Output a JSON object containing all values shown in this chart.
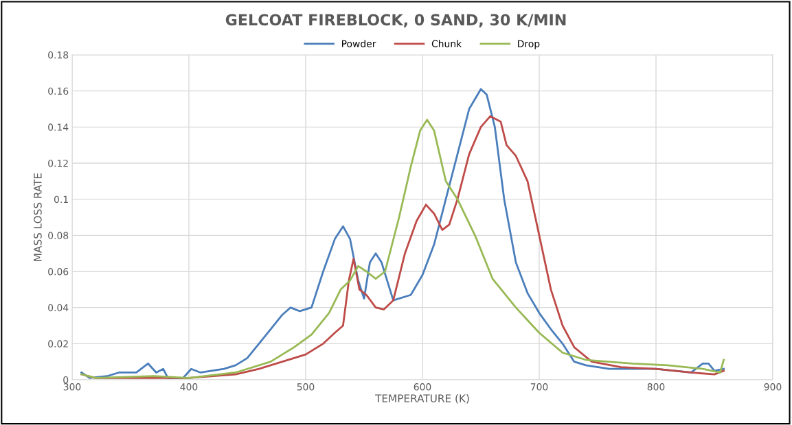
{
  "chart_data": {
    "type": "line",
    "title": "GELCOAT FIREBLOCK, 0 SAND, 30 K/MIN",
    "xlabel": "TEMPERATURE (K)",
    "ylabel": "MASS LOSS RATE",
    "xlim": [
      300,
      900
    ],
    "xticks": [
      300,
      400,
      500,
      600,
      700,
      800,
      900
    ],
    "ylim": [
      0,
      0.18
    ],
    "yticks": [
      0,
      0.02,
      0.04,
      0.06,
      0.08,
      0.1,
      0.12,
      0.14,
      0.16,
      0.18
    ],
    "grid": true,
    "legend": "top",
    "marker": "none",
    "line_style": "solid",
    "series": [
      {
        "name": "Powder",
        "color": "#4a7ebb",
        "x": [
          308,
          315,
          330,
          340,
          355,
          365,
          372,
          378,
          382,
          395,
          402,
          410,
          430,
          440,
          450,
          460,
          470,
          480,
          487,
          495,
          505,
          515,
          525,
          532,
          538,
          545,
          550,
          555,
          560,
          565,
          575,
          590,
          600,
          610,
          620,
          630,
          640,
          650,
          655,
          662,
          670,
          680,
          690,
          700,
          710,
          720,
          730,
          740,
          760,
          800,
          830,
          840,
          845,
          850,
          858
        ],
        "values": [
          0.004,
          0.001,
          0.002,
          0.004,
          0.004,
          0.009,
          0.004,
          0.006,
          0.001,
          0.001,
          0.006,
          0.004,
          0.006,
          0.008,
          0.012,
          0.02,
          0.028,
          0.036,
          0.04,
          0.038,
          0.04,
          0.06,
          0.078,
          0.085,
          0.078,
          0.055,
          0.045,
          0.065,
          0.07,
          0.065,
          0.044,
          0.047,
          0.058,
          0.075,
          0.1,
          0.125,
          0.15,
          0.161,
          0.158,
          0.14,
          0.1,
          0.065,
          0.048,
          0.037,
          0.028,
          0.02,
          0.01,
          0.008,
          0.006,
          0.006,
          0.004,
          0.009,
          0.009,
          0.005,
          0.006
        ]
      },
      {
        "name": "Chunk",
        "color": "#be4b48",
        "x": [
          308,
          320,
          360,
          400,
          440,
          460,
          480,
          500,
          515,
          525,
          532,
          537,
          541,
          546,
          552,
          560,
          567,
          575,
          585,
          595,
          603,
          610,
          617,
          623,
          630,
          640,
          650,
          658,
          667,
          672,
          680,
          690,
          700,
          710,
          720,
          730,
          745,
          770,
          800,
          830,
          850,
          858
        ],
        "values": [
          0.003,
          0.001,
          0.001,
          0.001,
          0.003,
          0.006,
          0.01,
          0.014,
          0.02,
          0.026,
          0.03,
          0.055,
          0.067,
          0.05,
          0.047,
          0.04,
          0.039,
          0.044,
          0.07,
          0.088,
          0.097,
          0.092,
          0.083,
          0.086,
          0.1,
          0.125,
          0.14,
          0.146,
          0.143,
          0.13,
          0.124,
          0.11,
          0.08,
          0.05,
          0.03,
          0.018,
          0.01,
          0.007,
          0.006,
          0.004,
          0.003,
          0.005
        ]
      },
      {
        "name": "Drop",
        "color": "#98b954",
        "x": [
          308,
          320,
          370,
          400,
          440,
          470,
          490,
          505,
          520,
          530,
          538,
          545,
          552,
          560,
          568,
          580,
          590,
          598,
          604,
          610,
          620,
          630,
          645,
          660,
          670,
          680,
          700,
          720,
          740,
          780,
          810,
          840,
          855,
          858
        ],
        "values": [
          0.003,
          0.001,
          0.002,
          0.001,
          0.004,
          0.01,
          0.018,
          0.025,
          0.037,
          0.05,
          0.055,
          0.063,
          0.06,
          0.056,
          0.06,
          0.09,
          0.118,
          0.138,
          0.144,
          0.138,
          0.11,
          0.1,
          0.08,
          0.056,
          0.048,
          0.04,
          0.026,
          0.015,
          0.011,
          0.009,
          0.008,
          0.006,
          0.004,
          0.011
        ]
      }
    ]
  }
}
